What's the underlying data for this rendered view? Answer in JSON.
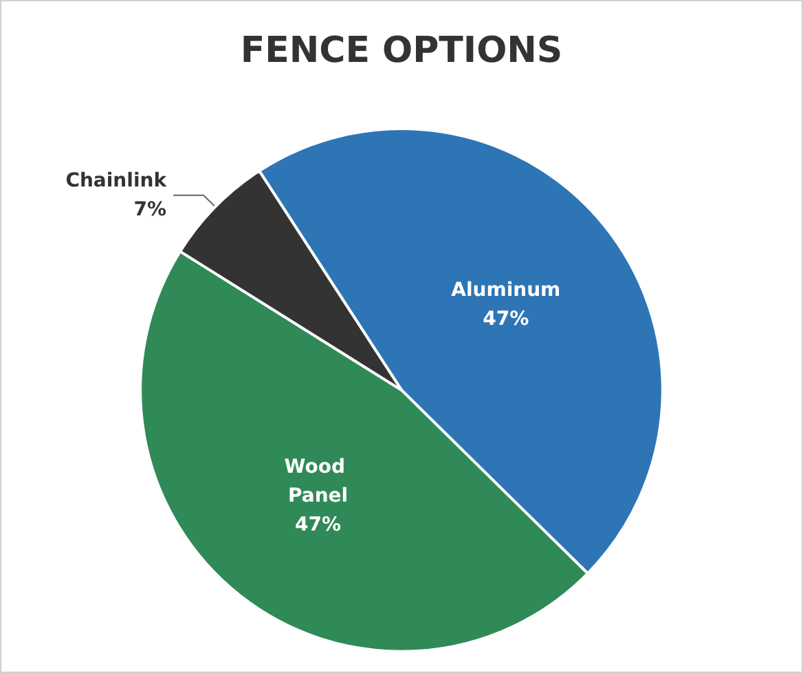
{
  "chart_data": {
    "type": "pie",
    "title": "FENCE OPTIONS",
    "categories": [
      "Aluminum",
      "Wood Panel",
      "Chainlink"
    ],
    "values": [
      47,
      47,
      7
    ],
    "colors": [
      "#2e75b6",
      "#2f8a57",
      "#333333"
    ],
    "value_labels": [
      "47%",
      "47%",
      "7%"
    ],
    "legend": false
  }
}
